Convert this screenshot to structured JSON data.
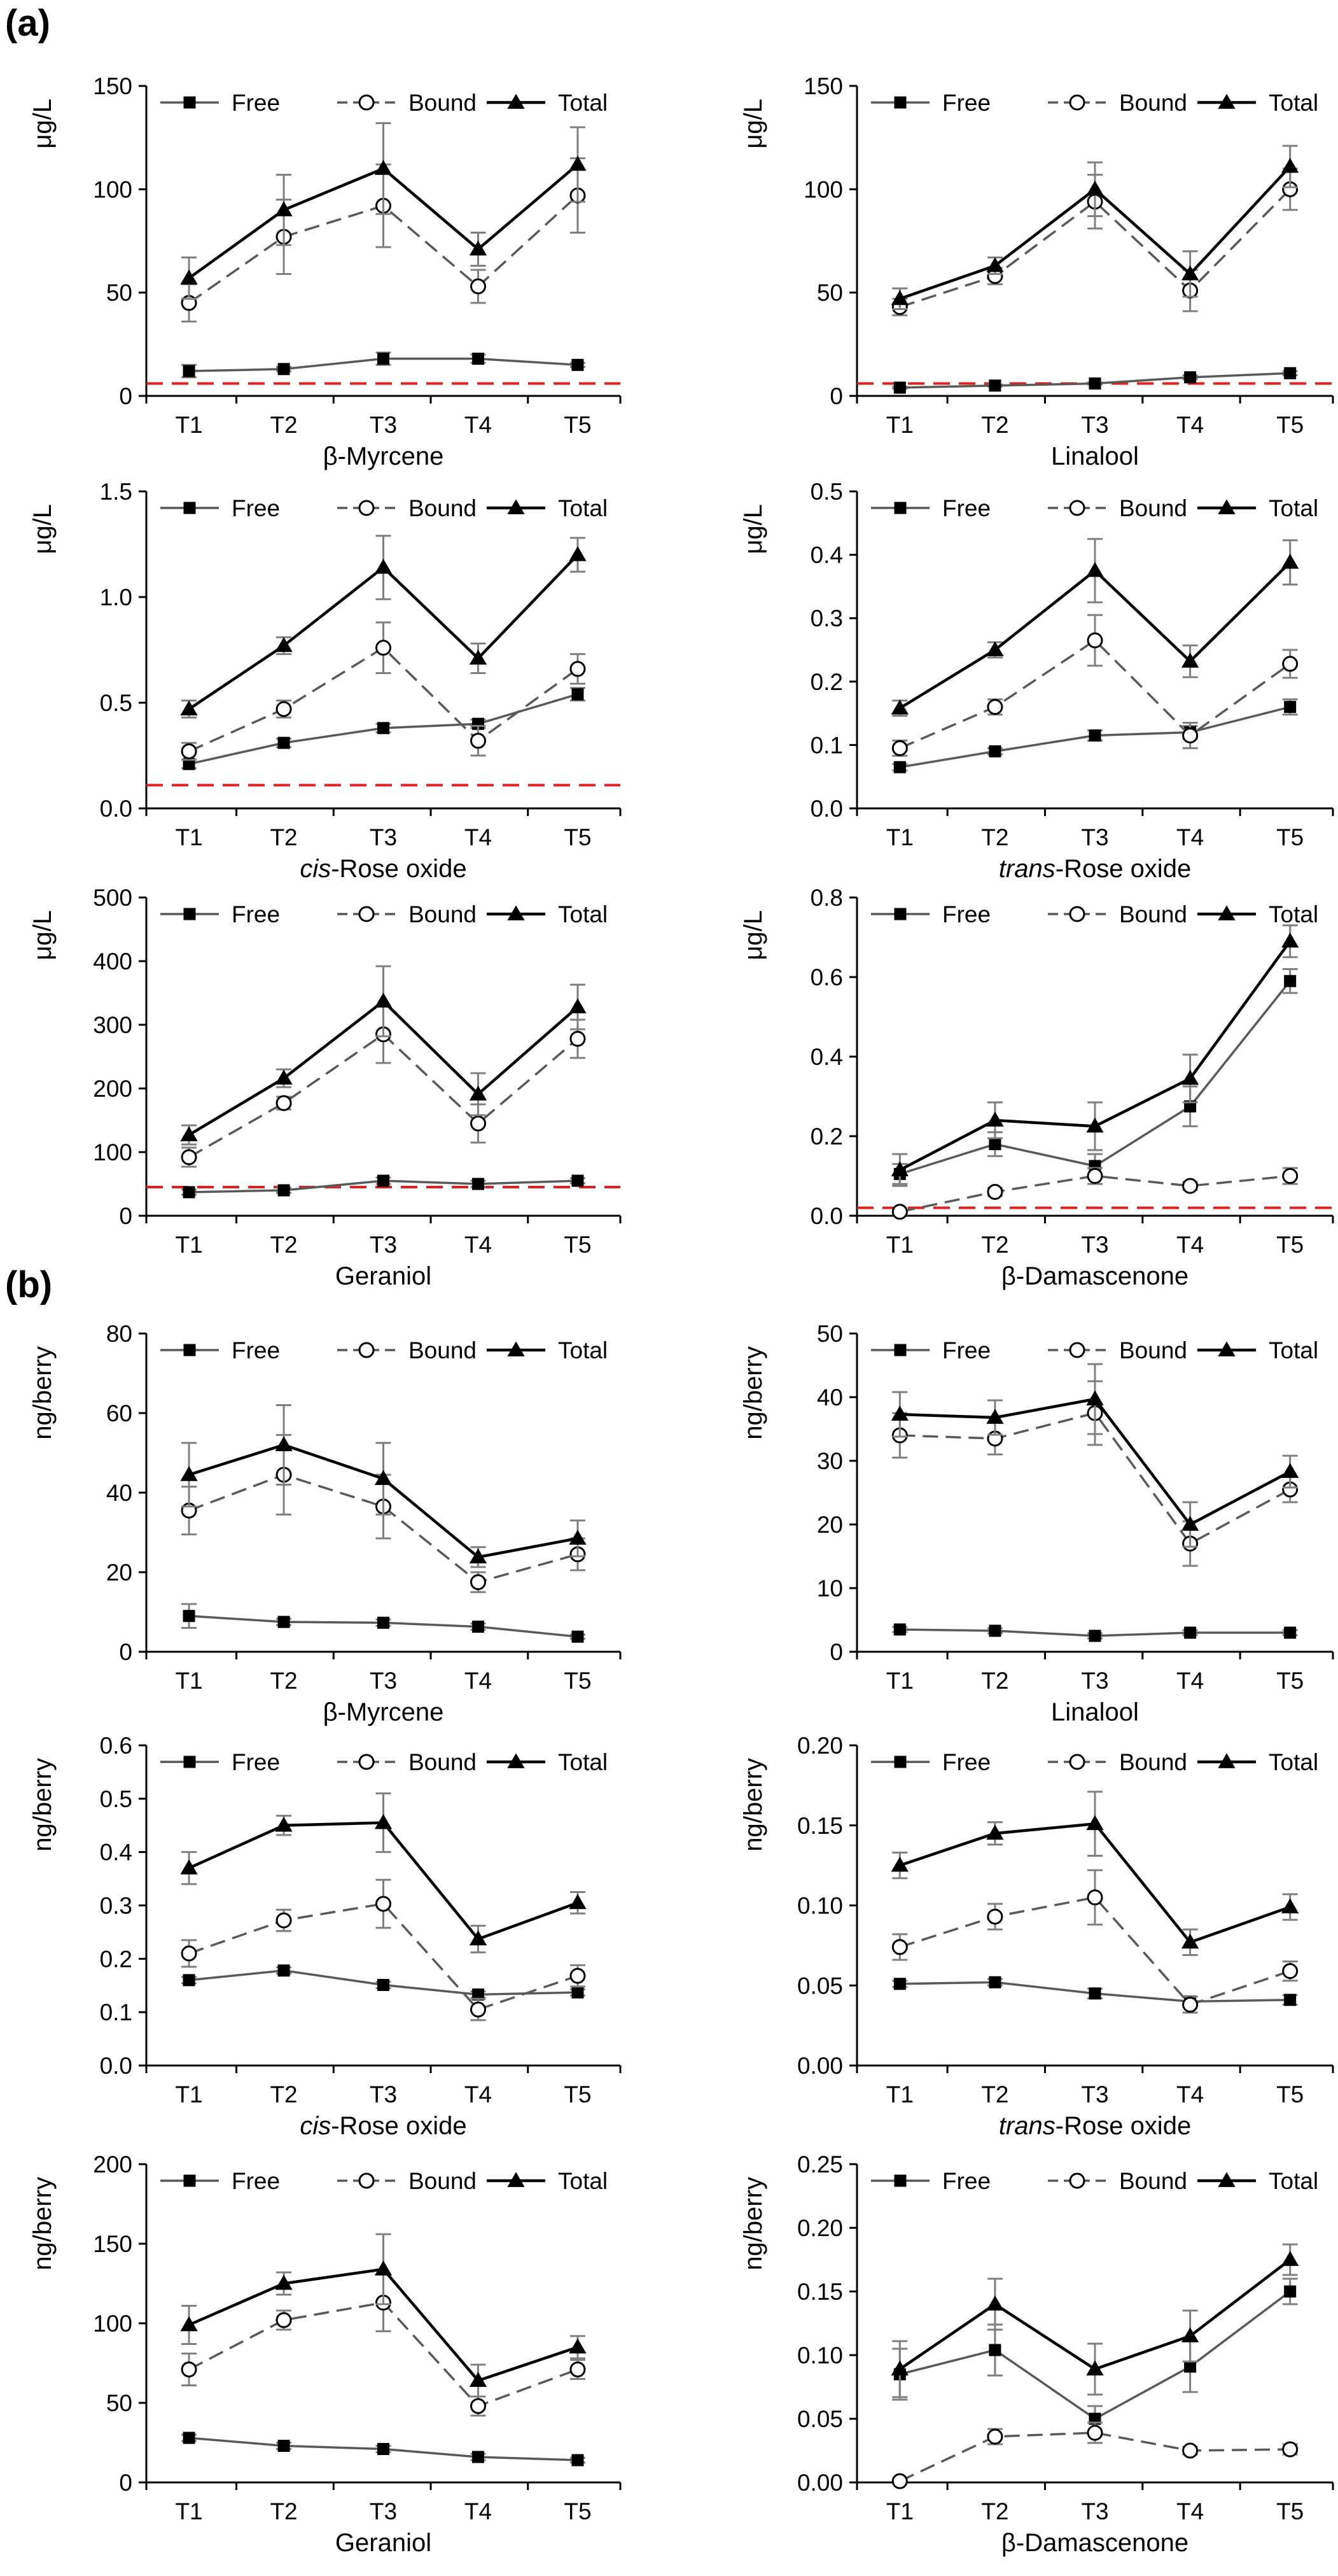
{
  "figure": {
    "panel_a_label": "(a)",
    "panel_b_label": "(b)",
    "legend_labels": {
      "free": "Free",
      "bound": "Bound",
      "total": "Total"
    },
    "colors": {
      "free": "#595959",
      "bound": "#595959",
      "total": "#000000",
      "threshold": "#e02020"
    }
  },
  "chart_data": [
    {
      "type": "line",
      "panel": "a",
      "ylabel": "μg/L",
      "xlabel": "β-Myrcene",
      "categories": [
        "T1",
        "T2",
        "T3",
        "T4",
        "T5"
      ],
      "ylim": [
        0,
        150
      ],
      "yticks": [
        "0",
        "50",
        "100",
        "150"
      ],
      "threshold": 6,
      "legend": "top",
      "series": [
        {
          "name": "Free",
          "values": [
            12,
            13,
            18,
            18,
            15
          ],
          "errors": [
            3,
            1,
            3,
            2,
            1
          ]
        },
        {
          "name": "Bound",
          "values": [
            45,
            77,
            92,
            53,
            97
          ],
          "errors": [
            9,
            18,
            20,
            8,
            18
          ]
        },
        {
          "name": "Total",
          "values": [
            57,
            90,
            110,
            71,
            112
          ],
          "errors": [
            10,
            17,
            22,
            8,
            18
          ]
        }
      ]
    },
    {
      "type": "line",
      "panel": "a",
      "ylabel": "μg/L",
      "xlabel": "Linalool",
      "categories": [
        "T1",
        "T2",
        "T3",
        "T4",
        "T5"
      ],
      "ylim": [
        0,
        150
      ],
      "yticks": [
        "0",
        "50",
        "100",
        "150"
      ],
      "threshold": 6,
      "legend": "top",
      "series": [
        {
          "name": "Free",
          "values": [
            4,
            5,
            6,
            9,
            11
          ],
          "errors": [
            0.5,
            0.5,
            0.5,
            1,
            1
          ]
        },
        {
          "name": "Bound",
          "values": [
            43,
            58,
            94,
            51,
            100
          ],
          "errors": [
            4,
            4,
            13,
            10,
            10
          ]
        },
        {
          "name": "Total",
          "values": [
            47,
            63,
            100,
            59,
            111
          ],
          "errors": [
            5,
            4,
            13,
            11,
            10
          ]
        }
      ]
    },
    {
      "type": "line",
      "panel": "a",
      "ylabel": "μg/L",
      "xlabel": "cis-Rose oxide",
      "xlabel_italic": "cis",
      "xlabel_rest": "-Rose oxide",
      "categories": [
        "T1",
        "T2",
        "T3",
        "T4",
        "T5"
      ],
      "ylim": [
        0,
        1.5
      ],
      "yticks": [
        "0.0",
        "0.5",
        "1.0",
        "1.5"
      ],
      "threshold": 0.11,
      "legend": "top",
      "series": [
        {
          "name": "Free",
          "values": [
            0.21,
            0.31,
            0.38,
            0.4,
            0.54
          ],
          "errors": [
            0.02,
            0.02,
            0.02,
            0.02,
            0.03
          ]
        },
        {
          "name": "Bound",
          "values": [
            0.27,
            0.47,
            0.76,
            0.32,
            0.66
          ],
          "errors": [
            0.04,
            0.04,
            0.12,
            0.07,
            0.07
          ]
        },
        {
          "name": "Total",
          "values": [
            0.47,
            0.77,
            1.14,
            0.71,
            1.2
          ],
          "errors": [
            0.04,
            0.04,
            0.15,
            0.07,
            0.08
          ]
        }
      ]
    },
    {
      "type": "line",
      "panel": "a",
      "ylabel": "μg/L",
      "xlabel": "trans-Rose oxide",
      "xlabel_italic": "trans",
      "xlabel_rest": "-Rose oxide",
      "categories": [
        "T1",
        "T2",
        "T3",
        "T4",
        "T5"
      ],
      "ylim": [
        0,
        0.5
      ],
      "yticks": [
        "0.0",
        "0.1",
        "0.2",
        "0.3",
        "0.4",
        "0.5"
      ],
      "threshold": null,
      "legend": "top",
      "series": [
        {
          "name": "Free",
          "values": [
            0.065,
            0.09,
            0.115,
            0.12,
            0.16
          ],
          "errors": [
            0.005,
            0.005,
            0.008,
            0.01,
            0.012
          ]
        },
        {
          "name": "Bound",
          "values": [
            0.095,
            0.16,
            0.265,
            0.115,
            0.228
          ],
          "errors": [
            0.012,
            0.012,
            0.04,
            0.02,
            0.022
          ]
        },
        {
          "name": "Total",
          "values": [
            0.158,
            0.25,
            0.375,
            0.232,
            0.388
          ],
          "errors": [
            0.012,
            0.012,
            0.05,
            0.025,
            0.035
          ]
        }
      ]
    },
    {
      "type": "line",
      "panel": "a",
      "ylabel": "μg/L",
      "xlabel": "Geraniol",
      "categories": [
        "T1",
        "T2",
        "T3",
        "T4",
        "T5"
      ],
      "ylim": [
        0,
        500
      ],
      "yticks": [
        "0",
        "100",
        "200",
        "300",
        "400",
        "500"
      ],
      "threshold": 45,
      "legend": "top",
      "series": [
        {
          "name": "Free",
          "values": [
            37,
            40,
            55,
            50,
            55
          ],
          "errors": [
            4,
            4,
            5,
            5,
            4
          ]
        },
        {
          "name": "Bound",
          "values": [
            92,
            177,
            285,
            145,
            278
          ],
          "errors": [
            15,
            10,
            45,
            30,
            30
          ]
        },
        {
          "name": "Total",
          "values": [
            127,
            216,
            337,
            191,
            328
          ],
          "errors": [
            15,
            14,
            55,
            33,
            35
          ]
        }
      ]
    },
    {
      "type": "line",
      "panel": "a",
      "ylabel": "μg/L",
      "xlabel": "β-Damascenone",
      "categories": [
        "T1",
        "T2",
        "T3",
        "T4",
        "T5"
      ],
      "ylim": [
        0,
        0.8
      ],
      "yticks": [
        "0.0",
        "0.2",
        "0.4",
        "0.6",
        "0.8"
      ],
      "threshold": 0.02,
      "legend": "top",
      "series": [
        {
          "name": "Free",
          "values": [
            0.105,
            0.18,
            0.125,
            0.275,
            0.59
          ],
          "errors": [
            0.025,
            0.03,
            0.03,
            0.05,
            0.03
          ]
        },
        {
          "name": "Bound",
          "values": [
            0.01,
            0.06,
            0.1,
            0.075,
            0.1
          ],
          "errors": [
            0.003,
            0.01,
            0.02,
            0.01,
            0.02
          ]
        },
        {
          "name": "Total",
          "values": [
            0.115,
            0.24,
            0.225,
            0.345,
            0.69
          ],
          "errors": [
            0.04,
            0.045,
            0.06,
            0.06,
            0.04
          ]
        }
      ]
    },
    {
      "type": "line",
      "panel": "b",
      "ylabel": "ng/berry",
      "xlabel": "β-Myrcene",
      "categories": [
        "T1",
        "T2",
        "T3",
        "T4",
        "T5"
      ],
      "ylim": [
        0,
        80
      ],
      "yticks": [
        "0",
        "20",
        "40",
        "60",
        "80"
      ],
      "threshold": null,
      "legend": "top",
      "series": [
        {
          "name": "Free",
          "values": [
            9,
            7.5,
            7.3,
            6.3,
            3.8
          ],
          "errors": [
            3,
            0.8,
            0.8,
            0.8,
            0.5
          ]
        },
        {
          "name": "Bound",
          "values": [
            35.5,
            44.5,
            36.5,
            17.5,
            24.5
          ],
          "errors": [
            6,
            10,
            8,
            2.5,
            4
          ]
        },
        {
          "name": "Total",
          "values": [
            44.5,
            52,
            43.5,
            23.8,
            28.5
          ],
          "errors": [
            8,
            10,
            9,
            2.5,
            4.5
          ]
        }
      ]
    },
    {
      "type": "line",
      "panel": "b",
      "ylabel": "ng/berry",
      "xlabel": "Linalool",
      "categories": [
        "T1",
        "T2",
        "T3",
        "T4",
        "T5"
      ],
      "ylim": [
        0,
        50
      ],
      "yticks": [
        "0",
        "10",
        "20",
        "30",
        "40",
        "50"
      ],
      "threshold": null,
      "legend": "top",
      "series": [
        {
          "name": "Free",
          "values": [
            3.5,
            3.3,
            2.5,
            3,
            3
          ],
          "errors": [
            0.4,
            0.4,
            0.4,
            0.4,
            0.4
          ]
        },
        {
          "name": "Bound",
          "values": [
            34,
            33.5,
            37.5,
            17,
            25.5
          ],
          "errors": [
            3.5,
            2.5,
            5,
            3.5,
            2
          ]
        },
        {
          "name": "Total",
          "values": [
            37.3,
            36.8,
            39.7,
            20,
            28.3
          ],
          "errors": [
            3.5,
            2.7,
            5.5,
            3.5,
            2.5
          ]
        }
      ]
    },
    {
      "type": "line",
      "panel": "b",
      "ylabel": "ng/berry",
      "xlabel": "cis-Rose oxide",
      "xlabel_italic": "cis",
      "xlabel_rest": "-Rose oxide",
      "categories": [
        "T1",
        "T2",
        "T3",
        "T4",
        "T5"
      ],
      "ylim": [
        0,
        0.6
      ],
      "yticks": [
        "0.0",
        "0.1",
        "0.2",
        "0.3",
        "0.4",
        "0.5",
        "0.6"
      ],
      "threshold": null,
      "legend": "top",
      "series": [
        {
          "name": "Free",
          "values": [
            0.16,
            0.178,
            0.151,
            0.133,
            0.137
          ],
          "errors": [
            0.006,
            0.006,
            0.006,
            0.006,
            0.006
          ]
        },
        {
          "name": "Bound",
          "values": [
            0.21,
            0.272,
            0.303,
            0.105,
            0.168
          ],
          "errors": [
            0.025,
            0.02,
            0.045,
            0.02,
            0.02
          ]
        },
        {
          "name": "Total",
          "values": [
            0.37,
            0.45,
            0.455,
            0.237,
            0.305
          ],
          "errors": [
            0.03,
            0.018,
            0.055,
            0.025,
            0.02
          ]
        }
      ]
    },
    {
      "type": "line",
      "panel": "b",
      "ylabel": "ng/berry",
      "xlabel": "trans-Rose oxide",
      "xlabel_italic": "trans",
      "xlabel_rest": "-Rose oxide",
      "categories": [
        "T1",
        "T2",
        "T3",
        "T4",
        "T5"
      ],
      "ylim": [
        0,
        0.2
      ],
      "yticks": [
        "0.00",
        "0.05",
        "0.10",
        "0.15",
        "0.20"
      ],
      "threshold": null,
      "legend": "top",
      "series": [
        {
          "name": "Free",
          "values": [
            0.051,
            0.052,
            0.045,
            0.04,
            0.041
          ],
          "errors": [
            0.002,
            0.002,
            0.003,
            0.003,
            0.003
          ]
        },
        {
          "name": "Bound",
          "values": [
            0.074,
            0.093,
            0.105,
            0.038,
            0.059
          ],
          "errors": [
            0.008,
            0.008,
            0.017,
            0.005,
            0.006
          ]
        },
        {
          "name": "Total",
          "values": [
            0.125,
            0.145,
            0.151,
            0.077,
            0.099
          ],
          "errors": [
            0.008,
            0.007,
            0.02,
            0.008,
            0.008
          ]
        }
      ]
    },
    {
      "type": "line",
      "panel": "b",
      "ylabel": "ng/berry",
      "xlabel": "Geraniol",
      "categories": [
        "T1",
        "T2",
        "T3",
        "T4",
        "T5"
      ],
      "ylim": [
        0,
        200
      ],
      "yticks": [
        "0",
        "50",
        "100",
        "150",
        "200"
      ],
      "threshold": null,
      "legend": "top",
      "series": [
        {
          "name": "Free",
          "values": [
            28,
            23,
            21,
            16,
            14
          ],
          "errors": [
            2,
            2,
            2,
            2,
            1.5
          ]
        },
        {
          "name": "Bound",
          "values": [
            71,
            102,
            113,
            48,
            71
          ],
          "errors": [
            10,
            6,
            18,
            6,
            6
          ]
        },
        {
          "name": "Total",
          "values": [
            99,
            125,
            134,
            64,
            85
          ],
          "errors": [
            12,
            7,
            22,
            10,
            7
          ]
        }
      ]
    },
    {
      "type": "line",
      "panel": "b",
      "ylabel": "ng/berry",
      "xlabel": "β-Damascenone",
      "categories": [
        "T1",
        "T2",
        "T3",
        "T4",
        "T5"
      ],
      "ylim": [
        0,
        0.25
      ],
      "yticks": [
        "0.00",
        "0.05",
        "0.10",
        "0.15",
        "0.20",
        "0.25"
      ],
      "threshold": null,
      "legend": "top",
      "series": [
        {
          "name": "Free",
          "values": [
            0.085,
            0.104,
            0.05,
            0.091,
            0.15
          ],
          "errors": [
            0.02,
            0.02,
            0.01,
            0.02,
            0.01
          ]
        },
        {
          "name": "Bound",
          "values": [
            0.001,
            0.036,
            0.039,
            0.025,
            0.026
          ],
          "errors": [
            0.002,
            0.006,
            0.008,
            0.003,
            0.004
          ]
        },
        {
          "name": "Total",
          "values": [
            0.089,
            0.14,
            0.089,
            0.115,
            0.175
          ],
          "errors": [
            0.022,
            0.02,
            0.02,
            0.02,
            0.012
          ]
        }
      ]
    }
  ]
}
